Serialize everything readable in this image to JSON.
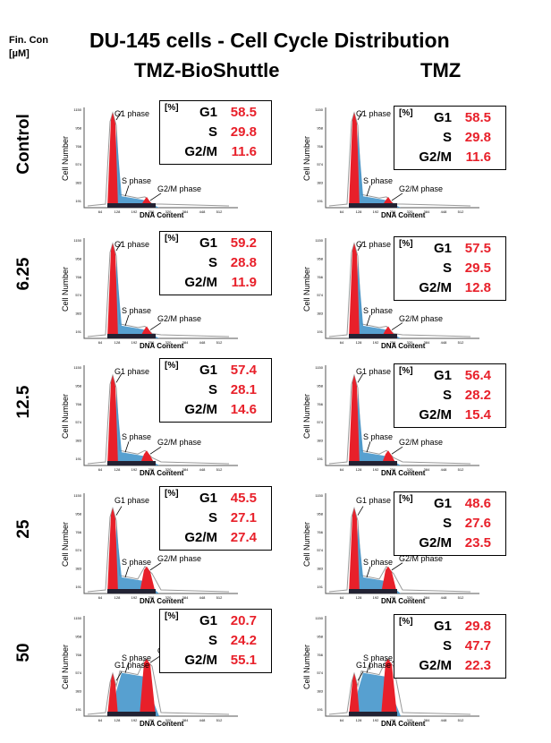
{
  "header": {
    "conc_label_line1": "Fin. Con",
    "conc_label_line2": "[µM]",
    "title": "DU-145 cells - Cell Cycle Distribution",
    "col_left": "TMZ-BioShuttle",
    "col_right": "TMZ"
  },
  "axes": {
    "ylabel": "Cell Number",
    "xlabel": "DNA Content",
    "yticks": [
      "1150",
      "958",
      "766",
      "574",
      "383",
      "191"
    ],
    "xticks": [
      "64",
      "128",
      "192",
      "256",
      "320",
      "384",
      "448",
      "512"
    ],
    "pct_label": "[%]",
    "phase_labels": {
      "g1": "G1 phase",
      "s": "S phase",
      "g2m": "G2/M phase"
    },
    "stat_keys": {
      "g1": "G1",
      "s": "S",
      "g2m": "G2/M"
    }
  },
  "chart_data": {
    "type": "histogram",
    "title": "DU-145 cells - Cell Cycle Distribution",
    "xlabel": "DNA Content",
    "ylabel": "Cell Number",
    "units": "%",
    "concentrations": [
      "Control",
      "6.25",
      "12.5",
      "25",
      "50"
    ],
    "treatments": [
      "TMZ-BioShuttle",
      "TMZ"
    ],
    "panels": [
      {
        "row": 0,
        "col": 0,
        "concentration": "Control",
        "treatment": "TMZ-BioShuttle",
        "G1": "58.5",
        "S": "29.8",
        "G2M": "11.6"
      },
      {
        "row": 0,
        "col": 1,
        "concentration": "Control",
        "treatment": "TMZ",
        "G1": "58.5",
        "S": "29.8",
        "G2M": "11.6"
      },
      {
        "row": 1,
        "col": 0,
        "concentration": "6.25",
        "treatment": "TMZ-BioShuttle",
        "G1": "59.2",
        "S": "28.8",
        "G2M": "11.9"
      },
      {
        "row": 1,
        "col": 1,
        "concentration": "6.25",
        "treatment": "TMZ",
        "G1": "57.5",
        "S": "29.5",
        "G2M": "12.8"
      },
      {
        "row": 2,
        "col": 0,
        "concentration": "12.5",
        "treatment": "TMZ-BioShuttle",
        "G1": "57.4",
        "S": "28.1",
        "G2M": "14.6"
      },
      {
        "row": 2,
        "col": 1,
        "concentration": "12.5",
        "treatment": "TMZ",
        "G1": "56.4",
        "S": "28.2",
        "G2M": "15.4"
      },
      {
        "row": 3,
        "col": 0,
        "concentration": "25",
        "treatment": "TMZ-BioShuttle",
        "G1": "45.5",
        "S": "27.1",
        "G2M": "27.4"
      },
      {
        "row": 3,
        "col": 1,
        "concentration": "25",
        "treatment": "TMZ",
        "G1": "48.6",
        "S": "27.6",
        "G2M": "23.5"
      },
      {
        "row": 4,
        "col": 0,
        "concentration": "50",
        "treatment": "TMZ-BioShuttle",
        "G1": "20.7",
        "S": "24.2",
        "G2M": "55.1"
      },
      {
        "row": 4,
        "col": 1,
        "concentration": "50",
        "treatment": "TMZ",
        "G1": "29.8",
        "S": "47.7",
        "G2M": "22.3"
      }
    ]
  },
  "colors": {
    "g1": "#e8202a",
    "s": "#3a8fc8",
    "g2m": "#e8202a",
    "value_text": "#e8202a"
  }
}
